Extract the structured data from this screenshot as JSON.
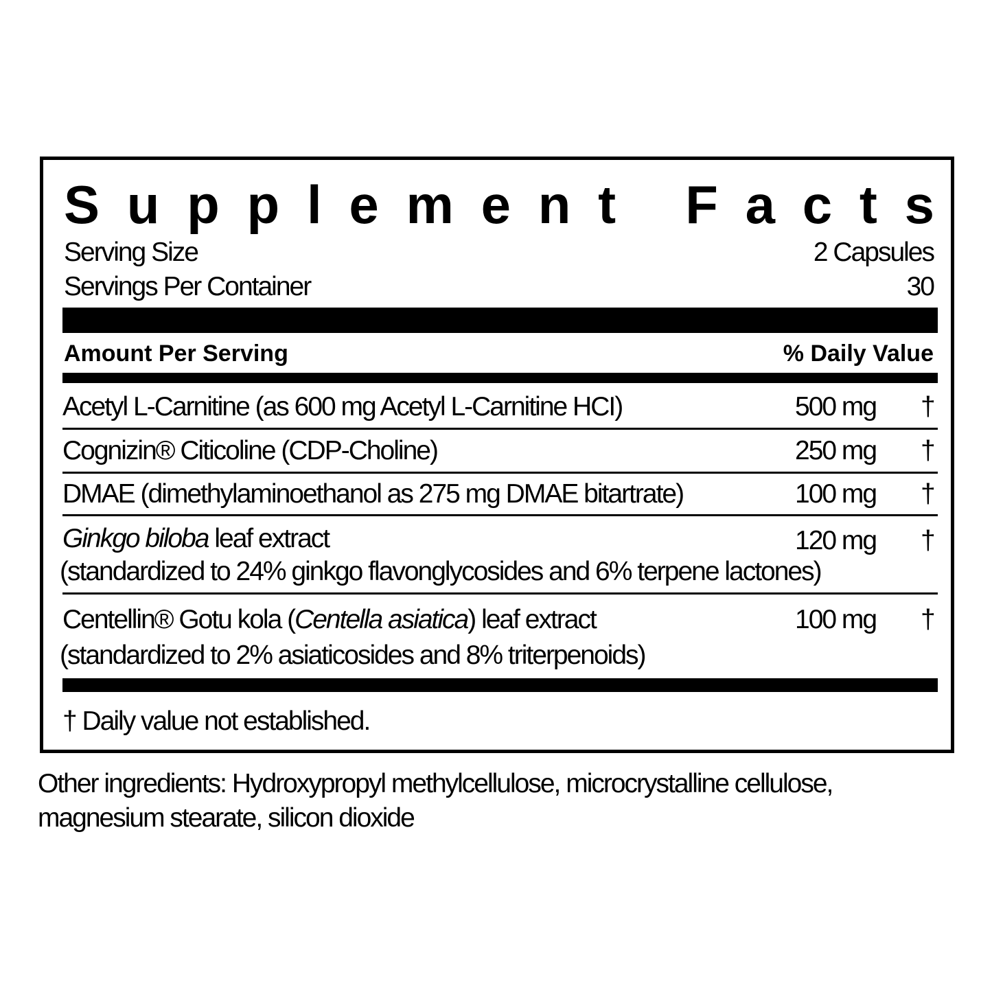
{
  "title": "Supplement Facts",
  "serving": {
    "size_label": "Serving Size",
    "size_value": "2 Capsules",
    "per_container_label": "Servings Per Container",
    "per_container_value": "30"
  },
  "header": {
    "amount": "Amount Per Serving",
    "dv": "% Daily Value"
  },
  "ingredients": [
    {
      "line1": "Acetyl L-Carnitine (as 600 mg Acetyl L-Carnitine HCI)",
      "amount": "500 mg",
      "dv": "†"
    },
    {
      "line1": "Cognizin® Citicoline (CDP-Choline)",
      "amount": "250 mg",
      "dv": "†"
    },
    {
      "line1": "DMAE (dimethylaminoethanol as 275 mg DMAE bitartrate)",
      "amount": "100 mg",
      "dv": "†"
    },
    {
      "line1_italic": "Ginkgo biloba",
      "line1_rest": " leaf extract",
      "line2": "(standardized to 24% ginkgo flavonglycosides and 6% terpene lactones)",
      "amount": "120 mg",
      "dv": "†"
    },
    {
      "line1_pre": "Centellin® Gotu kola (",
      "line1_italic": "Centella asiatica",
      "line1_rest": ") leaf extract",
      "line2": "(standardized to 2% asiaticosides and 8% triterpenoids)",
      "amount": "100 mg",
      "dv": "†"
    }
  ],
  "footnote": "† Daily value not established.",
  "other_ingredients": {
    "line1": "Other ingredients: Hydroxypropyl methylcellulose, microcrystalline cellulose,",
    "line2": "magnesium stearate, silicon dioxide"
  }
}
